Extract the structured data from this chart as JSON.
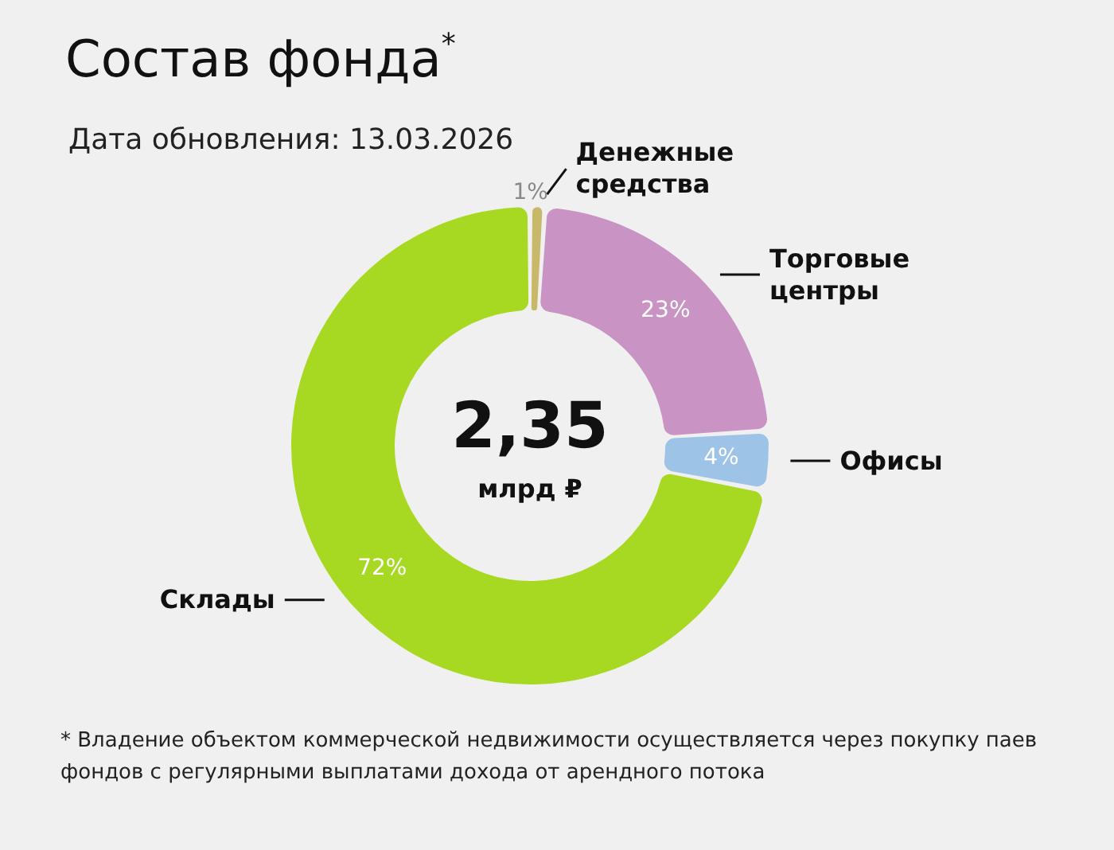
{
  "chart_data": {
    "type": "donut",
    "title": "Состав фонда$^{*}$",
    "subtitle": "Дата обновления: 13.03.2026",
    "categories": [
      "Денежные средства",
      "Торговые центры",
      "Офисы",
      "Склады"
    ],
    "values": [
      1,
      23,
      4,
      72
    ],
    "colors": [
      "#c8b96a",
      "#c994c4",
      "#9dc3e6",
      "#a8d922"
    ],
    "value_labels": [
      "1%",
      "23%",
      "4%",
      "72%"
    ],
    "legend": false,
    "annotations": [
      "2,35",
      "млрд ₽",
      "* Владение объектом коммерческой недвижимости осуществляется через покупку паев фондов с регулярными выплатами дохода от арендного потока"
    ]
  }
}
